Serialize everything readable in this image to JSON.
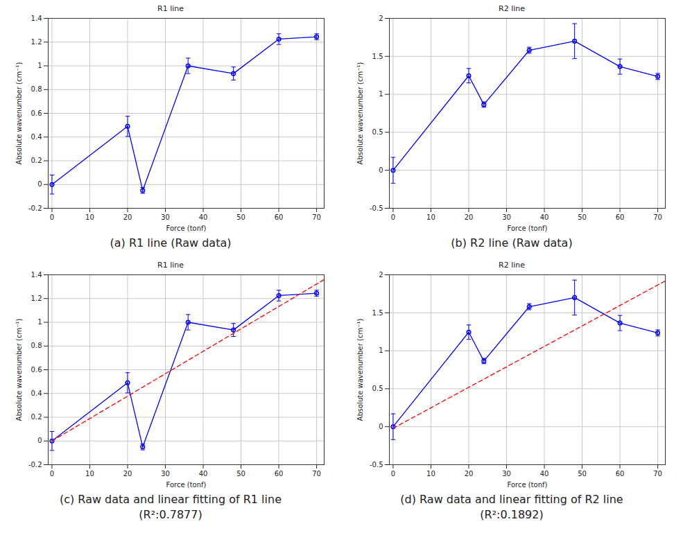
{
  "chart_data": [
    {
      "type": "line",
      "title": "R1 line",
      "xlabel": "Force (tonf)",
      "ylabel": "Absolute wavenumber (cm⁻¹)",
      "caption": [
        "(a) R1 line (Raw data)"
      ],
      "x": [
        0,
        20,
        24,
        36,
        48,
        60,
        70
      ],
      "xlim": [
        -1,
        72
      ],
      "xticks": [
        0,
        10,
        20,
        30,
        40,
        50,
        60,
        70
      ],
      "ylim": [
        -0.2,
        1.4
      ],
      "yticks": [
        -0.2,
        0,
        0.2,
        0.4,
        0.6,
        0.8,
        1,
        1.2,
        1.4
      ],
      "grid": true,
      "series": [
        {
          "color": "#0000ff",
          "marker": "circle",
          "line_style": "solid",
          "values": [
            0,
            0.49,
            -0.05,
            1.0,
            0.935,
            1.225,
            1.245
          ],
          "errors": [
            0.08,
            0.085,
            0.025,
            0.065,
            0.055,
            0.045,
            0.025
          ]
        }
      ]
    },
    {
      "type": "line",
      "title": "R2 line",
      "xlabel": "Force (tonf)",
      "ylabel": "Absolute wavenumber (cm⁻¹)",
      "caption": [
        "(b) R2 line (Raw data)"
      ],
      "x": [
        0,
        20,
        24,
        36,
        48,
        60,
        70
      ],
      "xlim": [
        -1,
        72
      ],
      "xticks": [
        0,
        10,
        20,
        30,
        40,
        50,
        60,
        70
      ],
      "ylim": [
        -0.5,
        2
      ],
      "yticks": [
        -0.5,
        0,
        0.5,
        1,
        1.5,
        2
      ],
      "grid": true,
      "series": [
        {
          "color": "#0000ff",
          "marker": "circle",
          "line_style": "solid",
          "values": [
            0,
            1.245,
            0.865,
            1.58,
            1.7,
            1.365,
            1.235
          ],
          "errors": [
            0.17,
            0.095,
            0.035,
            0.04,
            0.23,
            0.1,
            0.04
          ]
        }
      ]
    },
    {
      "type": "line",
      "title": "R1 line",
      "xlabel": "Force (tonf)",
      "ylabel": "Absolute wavenumber (cm⁻¹)",
      "caption": [
        "(c) Raw data and linear fitting of R1 line",
        "(R²:0.7877)"
      ],
      "x": [
        0,
        20,
        24,
        36,
        48,
        60,
        70
      ],
      "xlim": [
        -1,
        72
      ],
      "xticks": [
        0,
        10,
        20,
        30,
        40,
        50,
        60,
        70
      ],
      "ylim": [
        -0.2,
        1.4
      ],
      "yticks": [
        -0.2,
        0,
        0.2,
        0.4,
        0.6,
        0.8,
        1,
        1.2,
        1.4
      ],
      "grid": true,
      "series": [
        {
          "color": "#0000ff",
          "marker": "circle",
          "line_style": "solid",
          "values": [
            0,
            0.49,
            -0.05,
            1.0,
            0.935,
            1.225,
            1.245
          ],
          "errors": [
            0.08,
            0.085,
            0.025,
            0.065,
            0.055,
            0.045,
            0.025
          ]
        },
        {
          "color": "#ff0000",
          "line_style": "dashed",
          "x": [
            0,
            72
          ],
          "values": [
            0,
            1.36
          ]
        }
      ]
    },
    {
      "type": "line",
      "title": "R2 line",
      "xlabel": "Force (tonf)",
      "ylabel": "Absolute wavenumber (cm⁻¹)",
      "caption": [
        "(d) Raw data and linear fitting of R2 line",
        "(R²:0.1892)"
      ],
      "x": [
        0,
        20,
        24,
        36,
        48,
        60,
        70
      ],
      "xlim": [
        -1,
        72
      ],
      "xticks": [
        0,
        10,
        20,
        30,
        40,
        50,
        60,
        70
      ],
      "ylim": [
        -0.5,
        2
      ],
      "yticks": [
        -0.5,
        0,
        0.5,
        1,
        1.5,
        2
      ],
      "grid": true,
      "series": [
        {
          "color": "#0000ff",
          "marker": "circle",
          "line_style": "solid",
          "values": [
            0,
            1.245,
            0.865,
            1.58,
            1.7,
            1.365,
            1.235
          ],
          "errors": [
            0.17,
            0.095,
            0.035,
            0.04,
            0.23,
            0.1,
            0.04
          ]
        },
        {
          "color": "#ff0000",
          "line_style": "dashed",
          "x": [
            0,
            72
          ],
          "values": [
            -0.02,
            1.92
          ]
        }
      ]
    }
  ]
}
